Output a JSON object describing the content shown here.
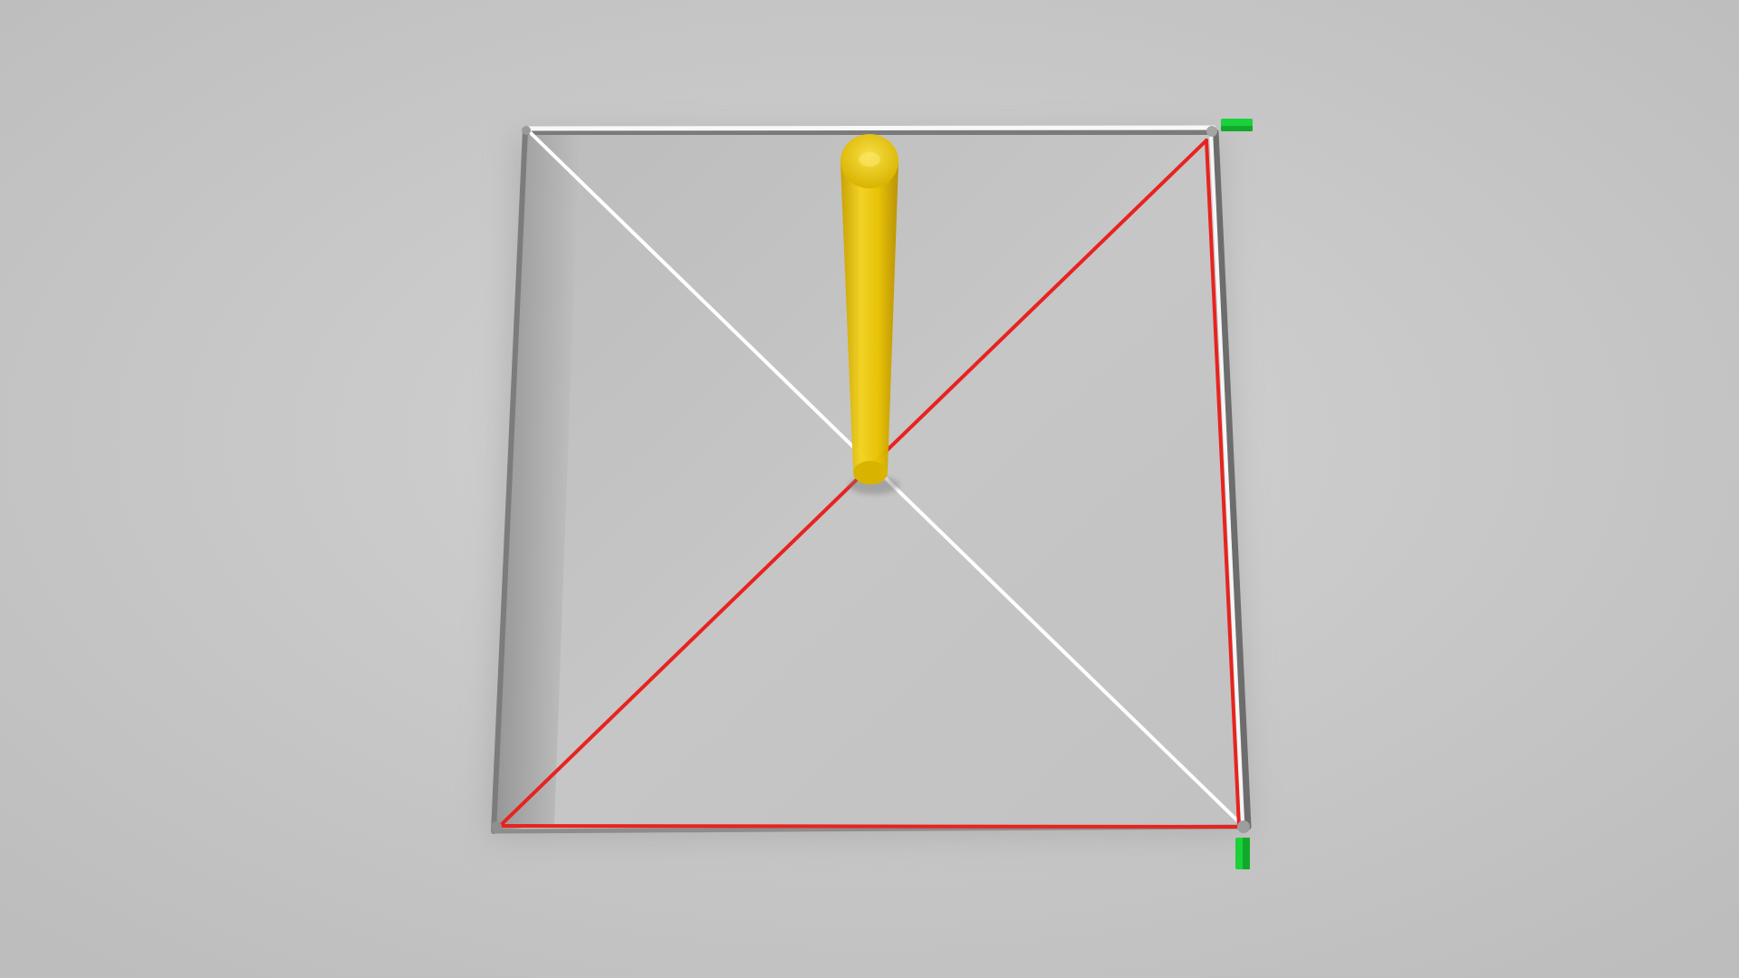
{
  "scene": {
    "background_color": "#c9c9c9",
    "frame_color": "#f4f4f4",
    "frame_shadow_color": "#7a7a7a",
    "red_line_color": "#e8231f",
    "white_line_color": "#ffffff",
    "pole_color": "#e8c200",
    "pole_highlight_color": "#f7dd3c",
    "pole_shadow_color": "#c39d00",
    "marker_color": "#19d23a",
    "objects": [
      "square-frame",
      "white-diagonal-cable",
      "red-diagonal-cable",
      "red-border-cables",
      "yellow-vertical-pole",
      "green-corner-markers"
    ]
  }
}
